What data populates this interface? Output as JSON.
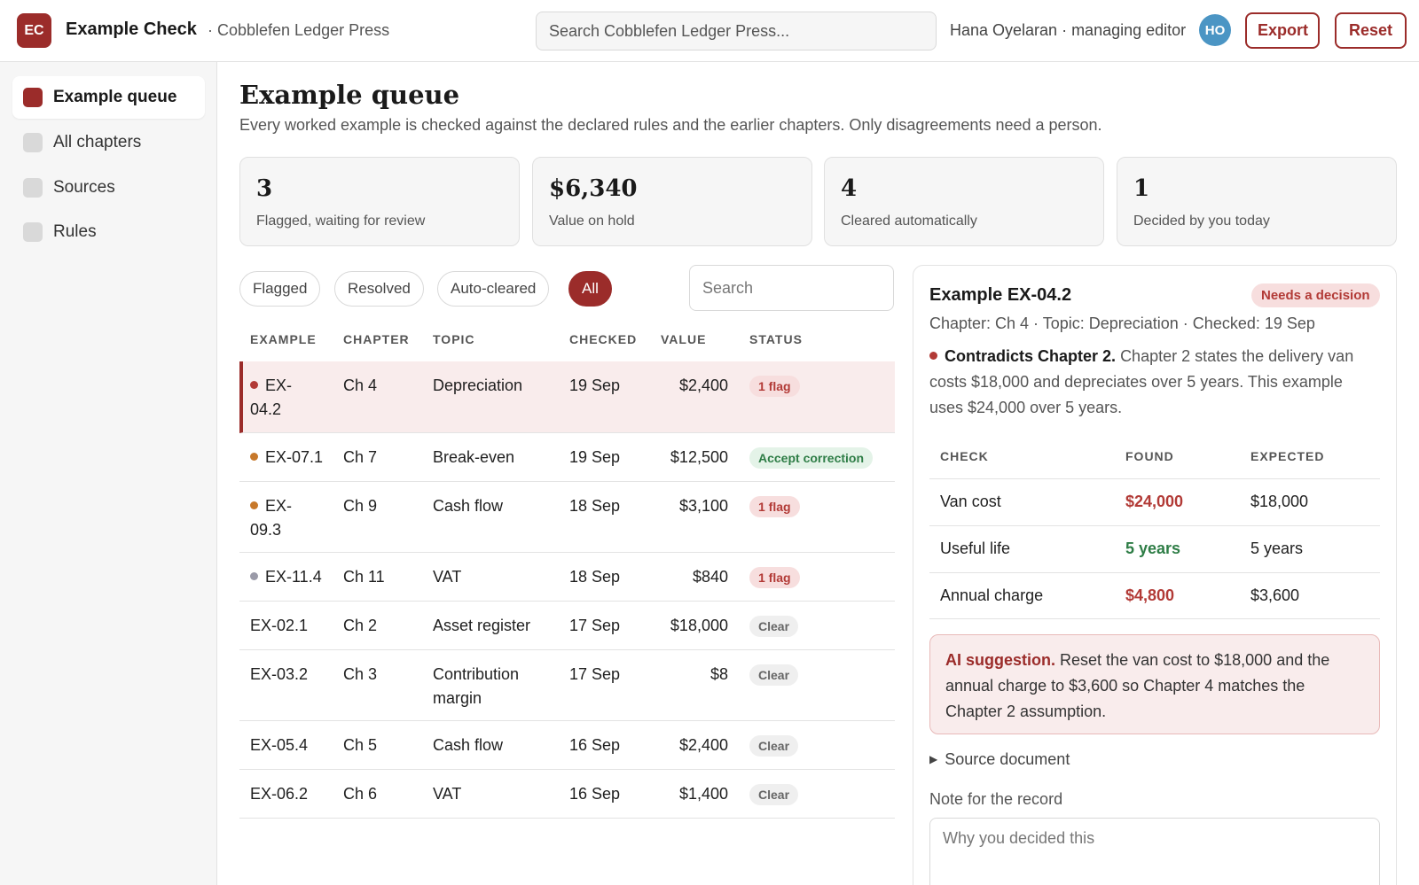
{
  "header": {
    "logo_text": "EC",
    "app_title": "Example Check",
    "org": "· Cobblefen Ledger Press",
    "search_placeholder": "Search Cobblefen Ledger Press...",
    "user": "Hana Oyelaran · managing editor",
    "avatar": "HO",
    "export_label": "Export",
    "reset_label": "Reset"
  },
  "sidebar": {
    "items": [
      {
        "label": "Example queue",
        "active": true
      },
      {
        "label": "All chapters",
        "active": false
      },
      {
        "label": "Sources",
        "active": false
      },
      {
        "label": "Rules",
        "active": false
      }
    ]
  },
  "main": {
    "title": "Example queue",
    "subtitle": "Every worked example is checked against the declared rules and the earlier chapters. Only disagreements need a person.",
    "stats": [
      {
        "value": "3",
        "label": "Flagged, waiting for review"
      },
      {
        "value": "$6,340",
        "label": "Value on hold"
      },
      {
        "value": "4",
        "label": "Cleared automatically"
      },
      {
        "value": "1",
        "label": "Decided by you today"
      }
    ],
    "filters": [
      "Flagged",
      "Resolved",
      "Auto-cleared",
      "All"
    ],
    "active_filter": "All",
    "search_placeholder": "Search"
  },
  "table": {
    "columns": [
      "Example",
      "Chapter",
      "Topic",
      "Checked",
      "Value",
      "Status"
    ],
    "rows": [
      {
        "id": "EX-04.2",
        "chapter": "Ch 4",
        "topic": "Depreciation",
        "checked": "19 Sep",
        "value": "$2,400",
        "status": "1 flag",
        "kind": "flag",
        "dot": "#b23a36",
        "selected": true
      },
      {
        "id": "EX-07.1",
        "chapter": "Ch 7",
        "topic": "Break-even",
        "checked": "19 Sep",
        "value": "$12,500",
        "status": "Accept correction",
        "kind": "accept",
        "dot": "#c7782a",
        "selected": false
      },
      {
        "id": "EX-09.3",
        "chapter": "Ch 9",
        "topic": "Cash flow",
        "checked": "18 Sep",
        "value": "$3,100",
        "status": "1 flag",
        "kind": "flag",
        "dot": "#c7782a",
        "selected": false
      },
      {
        "id": "EX-11.4",
        "chapter": "Ch 11",
        "topic": "VAT",
        "checked": "18 Sep",
        "value": "$840",
        "status": "1 flag",
        "kind": "flag",
        "dot": "#9a9aa8",
        "selected": false
      },
      {
        "id": "EX-02.1",
        "chapter": "Ch 2",
        "topic": "Asset register",
        "checked": "17 Sep",
        "value": "$18,000",
        "status": "Clear",
        "kind": "clear",
        "dot": "",
        "selected": false
      },
      {
        "id": "EX-03.2",
        "chapter": "Ch 3",
        "topic": "Contribution margin",
        "checked": "17 Sep",
        "value": "$8",
        "status": "Clear",
        "kind": "clear",
        "dot": "",
        "selected": false
      },
      {
        "id": "EX-05.4",
        "chapter": "Ch 5",
        "topic": "Cash flow",
        "checked": "16 Sep",
        "value": "$2,400",
        "status": "Clear",
        "kind": "clear",
        "dot": "",
        "selected": false
      },
      {
        "id": "EX-06.2",
        "chapter": "Ch 6",
        "topic": "VAT",
        "checked": "16 Sep",
        "value": "$1,400",
        "status": "Clear",
        "kind": "clear",
        "dot": "",
        "selected": false
      }
    ]
  },
  "detail": {
    "title": "Example EX-04.2",
    "status": "Needs a decision",
    "meta": "Chapter: Ch 4 · Topic: Depreciation · Checked: 19 Sep",
    "finding_title": "Contradicts Chapter 2.",
    "finding_text": "Chapter 2 states the delivery van costs $18,000 and depreciates over 5 years. This example uses $24,000 over 5 years.",
    "finding_dot": "#b23a36",
    "columns": [
      "Check",
      "Found",
      "Expected"
    ],
    "checks": [
      {
        "check": "Van cost",
        "found": "$24,000",
        "expected": "$18,000",
        "ok": false
      },
      {
        "check": "Useful life",
        "found": "5 years",
        "expected": "5 years",
        "ok": true
      },
      {
        "check": "Annual charge",
        "found": "$4,800",
        "expected": "$3,600",
        "ok": false
      }
    ],
    "suggestion_title": "AI suggestion.",
    "suggestion_text": "Reset the van cost to $18,000 and the annual charge to $3,600 so Chapter 4 matches the Chapter 2 assumption.",
    "source_label": "Source document",
    "note_label": "Note for the record",
    "note_placeholder": "Why you decided this"
  },
  "colors": {
    "accent": "#9b2c2a",
    "danger": "#b23a36",
    "success": "#2e7d46"
  }
}
